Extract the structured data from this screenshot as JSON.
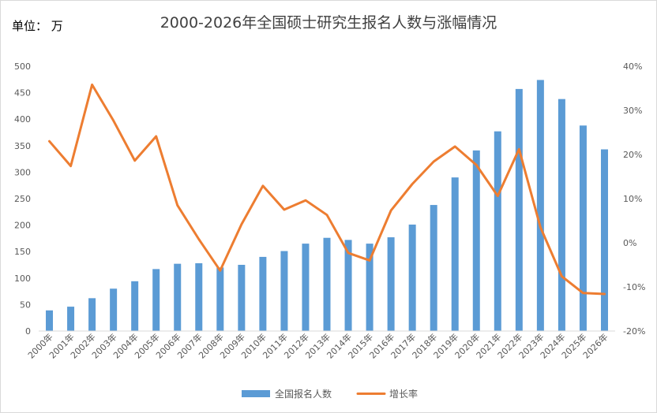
{
  "chart_data": {
    "type": "bar",
    "title": "2000-2026年全国硕士研究生报名人数与涨幅情况",
    "unit_label": "单位：  万",
    "categories": [
      "2000年",
      "2001年",
      "2002年",
      "2003年",
      "2004年",
      "2005年",
      "2006年",
      "2007年",
      "2008年",
      "2009年",
      "2010年",
      "2011年",
      "2012年",
      "2013年",
      "2014年",
      "2015年",
      "2016年",
      "2017年",
      "2018年",
      "2019年",
      "2020年",
      "2021年",
      "2022年",
      "2023年",
      "2024年",
      "2025年",
      "2026年"
    ],
    "series": [
      {
        "name": "全国报名人数",
        "type": "bar",
        "axis": "left",
        "color": "#5b9bd5",
        "values": [
          39,
          46,
          62,
          80,
          94,
          117,
          127,
          128,
          120,
          125,
          140,
          151,
          165,
          176,
          172,
          165,
          177,
          201,
          238,
          290,
          341,
          377,
          457,
          474,
          438,
          388,
          343
        ]
      },
      {
        "name": "增长率",
        "type": "line",
        "axis": "right",
        "color": "#ed7d31",
        "values": [
          23.0,
          17.4,
          35.8,
          27.7,
          18.6,
          24.1,
          8.5,
          0.8,
          -6.3,
          4.2,
          12.9,
          7.5,
          9.6,
          6.3,
          -2.3,
          -4.0,
          7.3,
          13.3,
          18.4,
          21.8,
          17.6,
          10.6,
          21.2,
          3.5,
          -7.6,
          -11.4,
          -11.6
        ]
      }
    ],
    "y_left": {
      "min": 0,
      "max": 500,
      "step": 50,
      "ticks": [
        "0",
        "50",
        "100",
        "150",
        "200",
        "250",
        "300",
        "350",
        "400",
        "450",
        "500"
      ]
    },
    "y_right": {
      "min": -20,
      "max": 40,
      "step": 10,
      "ticks": [
        "-20%",
        "-10%",
        "0%",
        "10%",
        "20%",
        "30%",
        "40%"
      ]
    },
    "grid": false,
    "legend_position": "bottom"
  }
}
